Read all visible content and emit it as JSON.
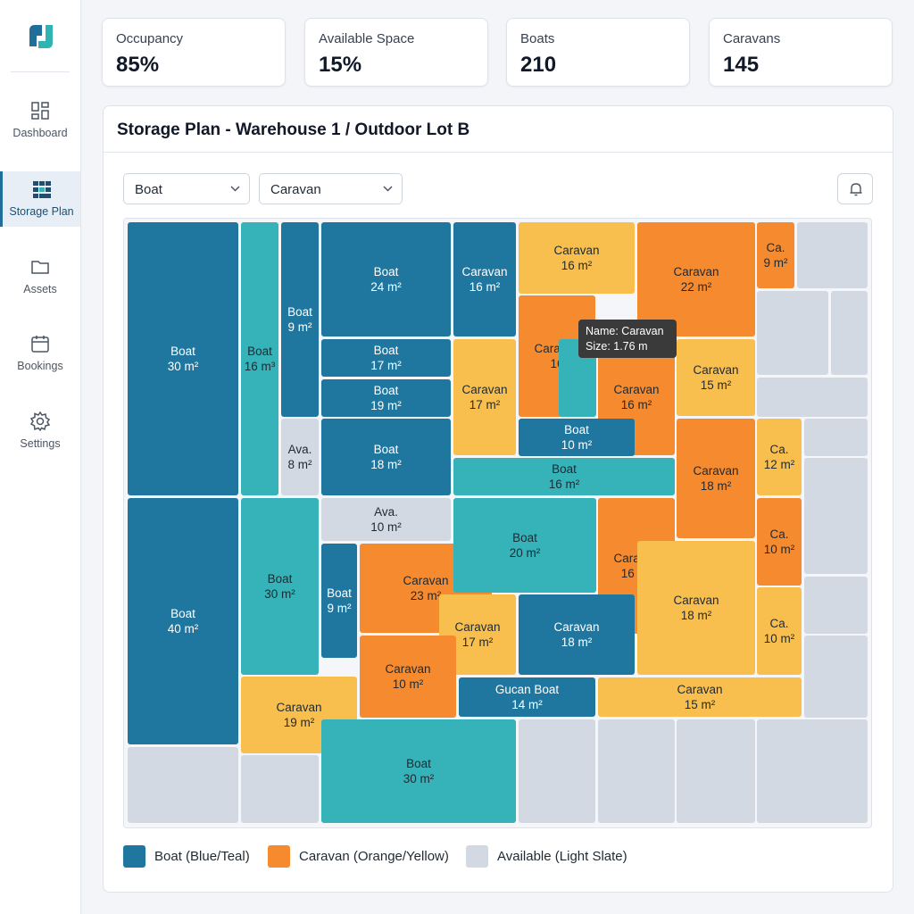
{
  "sidebar": {
    "nav": [
      "Dashboard",
      "Storage Plan",
      "Assets",
      "Bookings",
      "Settings"
    ]
  },
  "stats": [
    {
      "label": "Occupancy",
      "value": "85%"
    },
    {
      "label": "Available Space",
      "value": "15%"
    },
    {
      "label": "Boats",
      "value": "210"
    },
    {
      "label": "Caravans",
      "value": "145"
    }
  ],
  "panel": {
    "title": "Storage Plan - Warehouse 1 / Outdoor Lot B",
    "filters": [
      "Boat",
      "Caravan"
    ],
    "map": {
      "cells": [
        {
          "label": "Boat",
          "size": "30 m²"
        },
        {
          "label": "Boat",
          "size": "16 m³"
        },
        {
          "label": "Boat",
          "size": "9 m²"
        },
        {
          "label": "Ava.",
          "size": "8 m²"
        },
        {
          "label": "Boat",
          "size": "24 m²"
        },
        {
          "label": "Boat",
          "size": "17 m²"
        },
        {
          "label": "Boat",
          "size": "19 m²"
        },
        {
          "label": "Boat",
          "size": "18 m²"
        },
        {
          "label": "Caravan",
          "size": "16 m²"
        },
        {
          "label": "Caravan",
          "size": "17 m²"
        },
        {
          "label": "Caravan",
          "size": "16 m²"
        },
        {
          "label": "Caravan",
          "size": "16"
        },
        {
          "label": "Caravan",
          "size": "16 m²"
        },
        {
          "label": "Caravan",
          "size": "22 m²"
        },
        {
          "label": "Ca.",
          "size": "9 m²"
        },
        {
          "label": "Caravan",
          "size": "15 m²"
        },
        {
          "label": "Boat",
          "size": "10 m²"
        },
        {
          "label": "Boat",
          "size": "16 m²"
        },
        {
          "label": "Caravan",
          "size": "18 m²"
        },
        {
          "label": "Ca.",
          "size": "12 m²"
        },
        {
          "label": "Ava.",
          "size": "10 m²"
        },
        {
          "label": "Boat",
          "size": "40 m²"
        },
        {
          "label": "Boat",
          "size": "30 m²"
        },
        {
          "label": "Boat",
          "size": "9 m²"
        },
        {
          "label": "Caravan",
          "size": "23 m²"
        },
        {
          "label": "Boat",
          "size": "20 m²"
        },
        {
          "label": "Caravan",
          "size": "16 m²"
        },
        {
          "label": "Ca.",
          "size": "10 m²"
        },
        {
          "label": "Caravan",
          "size": "17 m²"
        },
        {
          "label": "Caravan",
          "size": "18 m²"
        },
        {
          "label": "Caravan",
          "size": "18 m²"
        },
        {
          "label": "Ca.",
          "size": "10 m²"
        },
        {
          "label": "Caravan",
          "size": "10 m²"
        },
        {
          "label": "Caravan",
          "size": "19 m²"
        },
        {
          "label": "Gucan Boat",
          "size": "14 m²"
        },
        {
          "label": "Caravan",
          "size": "15 m²"
        },
        {
          "label": "Boat",
          "size": "30 m²"
        }
      ],
      "tooltip": {
        "name": "Name: Caravan",
        "size": "Size: 1.76 m"
      }
    },
    "legend": [
      "Boat (Blue/Teal)",
      "Caravan (Orange/Yellow)",
      "Available (Light Slate)"
    ]
  }
}
